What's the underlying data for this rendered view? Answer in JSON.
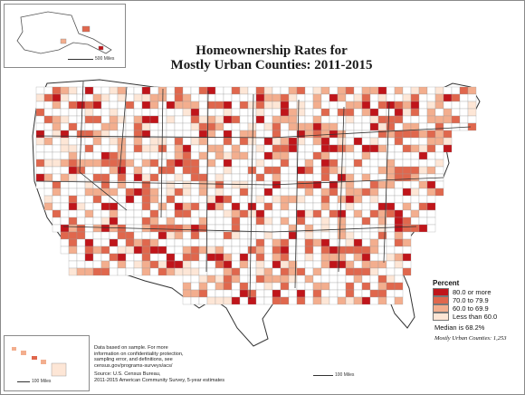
{
  "title": {
    "line1": "Homeownership Rates for",
    "line2": "Mostly Urban Counties: 2011-2015"
  },
  "legend": {
    "title": "Percent",
    "items": [
      {
        "label": "80.0 or more",
        "color": "#c0151a"
      },
      {
        "label": "70.0 to 79.9",
        "color": "#e0674d"
      },
      {
        "label": "60.0 to 69.9",
        "color": "#f3ae8e"
      },
      {
        "label": "Less than 60.0",
        "color": "#fde6d6"
      }
    ],
    "median": "Median is 68.2%",
    "count": "Mostly Urban Counties: 1,253"
  },
  "notes": {
    "lines": [
      "Data based on sample. For more",
      "information on confidentiality protection,",
      "sampling error, and definitions, see",
      "census.gov/programs-surveys/acs/"
    ],
    "source_lines": [
      "Source: U.S. Census Bureau,",
      "2011-2015 American Community Survey, 5-year estimates"
    ]
  },
  "scales": {
    "alaska": "500 Miles",
    "hawaii": "100 Miles",
    "main": "100 Miles"
  },
  "map_colors": {
    "no_data": "#ffffff",
    "boundary": "#9a9a9a",
    "state_boundary": "#333333",
    "water": "#ffffff"
  }
}
